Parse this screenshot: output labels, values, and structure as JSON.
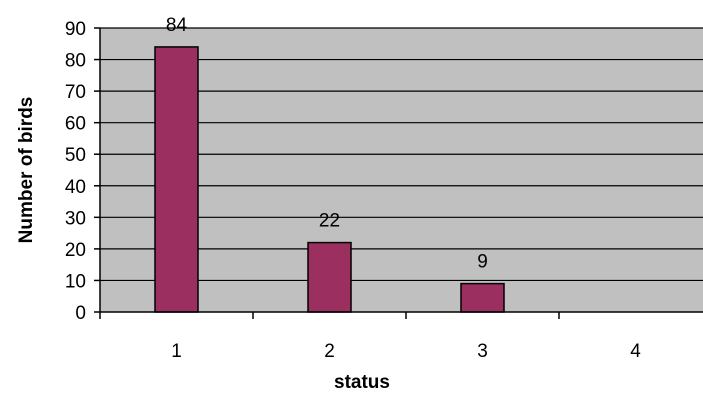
{
  "chart_data": {
    "type": "bar",
    "title": "",
    "xlabel": "status",
    "ylabel": "Number of birds",
    "categories": [
      "1",
      "2",
      "3",
      "4"
    ],
    "values": [
      84,
      22,
      9,
      null
    ],
    "data_labels": [
      "84",
      "22",
      "9",
      ""
    ],
    "ylim": [
      0,
      90
    ],
    "yticks": [
      0,
      10,
      20,
      30,
      40,
      50,
      60,
      70,
      80,
      90
    ],
    "grid": true,
    "legend": "none",
    "colors": {
      "bar_fill": "#9b3060",
      "bar_stroke": "#000000",
      "plot_background": "#c0c0c0",
      "gridline": "#000000"
    }
  }
}
